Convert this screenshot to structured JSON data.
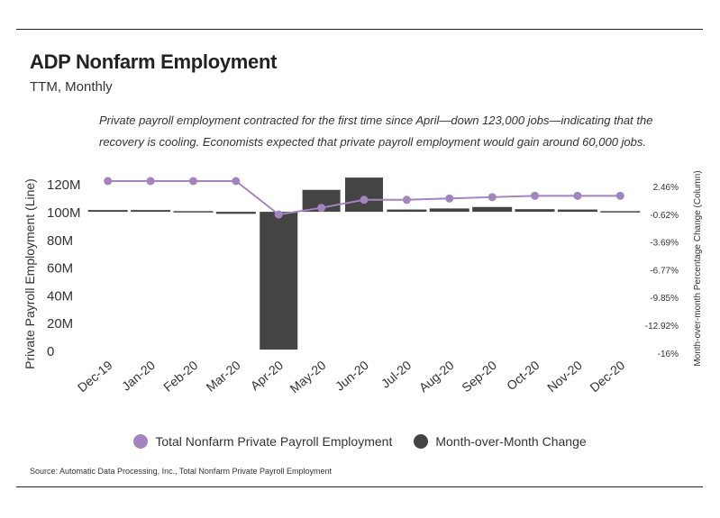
{
  "header": {
    "title": "ADP Nonfarm Employment",
    "subtitle": "TTM, Monthly",
    "annotation": "Private payroll employment contracted for the first time since April—down 123,000 jobs—indicating that the recovery is cooling. Economists expected that private payroll employment would gain around 60,000 jobs."
  },
  "footer": {
    "source": "Source:  Automatic Data Processing, Inc., Total Nonfarm Private Payroll Employment"
  },
  "colors": {
    "line": "#a384bf",
    "bars": "#444444",
    "text": "#333333"
  },
  "chart_data": {
    "type": "bar",
    "combo": "bar + line (dual axis)",
    "categories": [
      "Dec-19",
      "Jan-20",
      "Feb-20",
      "Mar-20",
      "Apr-20",
      "May-20",
      "Jun-20",
      "Jul-20",
      "Aug-20",
      "Sep-20",
      "Oct-20",
      "Nov-20",
      "Dec-20"
    ],
    "series": [
      {
        "name": "Total Nonfarm Private Payroll Employment",
        "type": "line",
        "axis": "left",
        "values": [
          128,
          128,
          128,
          128,
          103,
          108,
          114,
          114,
          115,
          116,
          117,
          117,
          117
        ]
      },
      {
        "name": "Month-over-Month Change",
        "type": "bar",
        "axis": "right",
        "values": [
          0.2,
          0.2,
          0.14,
          -0.23,
          -15.7,
          2.5,
          3.9,
          0.26,
          0.38,
          0.55,
          0.3,
          0.26,
          -0.1
        ]
      }
    ],
    "ylabel": "Private Payroll Employment (Line)",
    "y2label": "Month-over-month Percentage Change (Column)",
    "yticks": [
      "0",
      "20M",
      "40M",
      "60M",
      "80M",
      "100M",
      "120M"
    ],
    "ylim": [
      0,
      128
    ],
    "y2ticks": [
      "2.46%",
      "-0.62%",
      "-3.69%",
      "-6.77%",
      "-9.85%",
      "-12.92%",
      "-16%"
    ],
    "y2lim": [
      -16,
      3.5
    ],
    "grid": false,
    "legend": "bottom"
  }
}
